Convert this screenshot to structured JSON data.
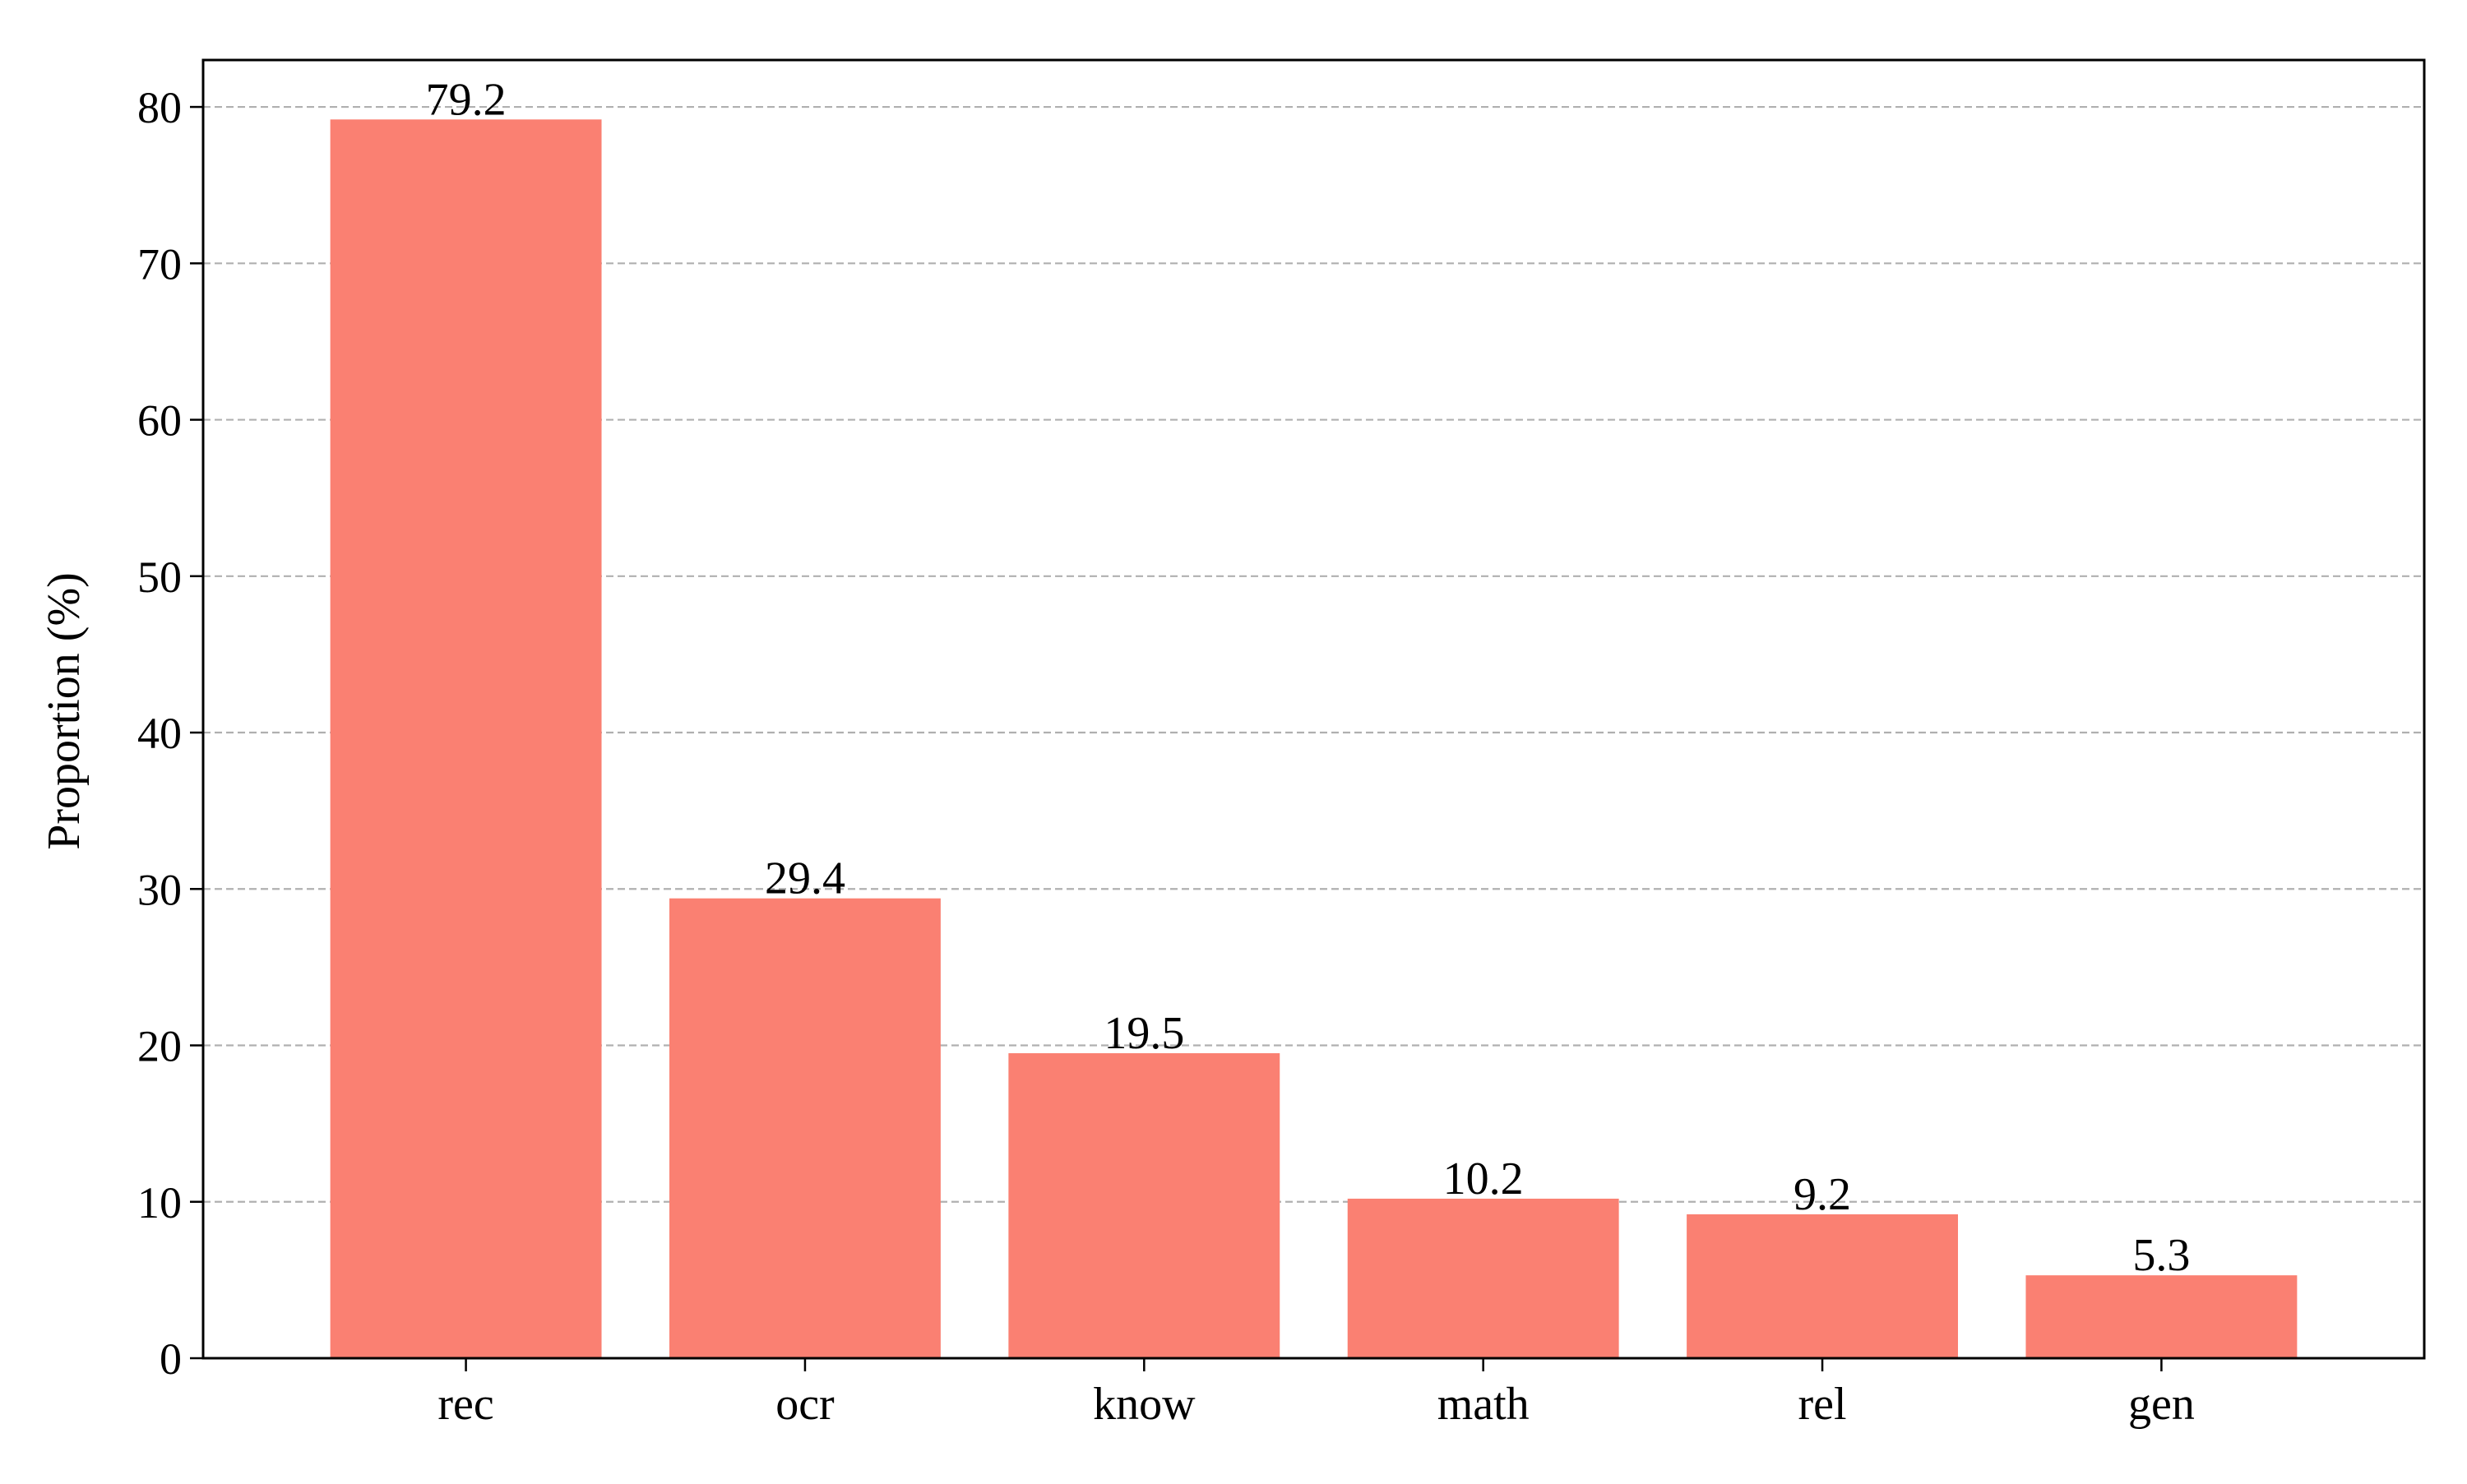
{
  "chart_data": {
    "type": "bar",
    "categories": [
      "rec",
      "ocr",
      "know",
      "math",
      "rel",
      "gen"
    ],
    "values": [
      79.2,
      29.4,
      19.5,
      10.2,
      9.2,
      5.3
    ],
    "data_labels": [
      "79.2",
      "29.4",
      "19.5",
      "10.2",
      "9.2",
      "5.3"
    ],
    "title": "",
    "xlabel": "",
    "ylabel": "Proportion (%)",
    "ylim": [
      0,
      83
    ],
    "yticks": [
      0,
      10,
      20,
      30,
      40,
      50,
      60,
      70,
      80
    ],
    "grid": "y-dashed",
    "legend": "none",
    "colors": {
      "bar": "#fa8072",
      "grid": "#b0b0b0",
      "axis": "#000000"
    }
  }
}
